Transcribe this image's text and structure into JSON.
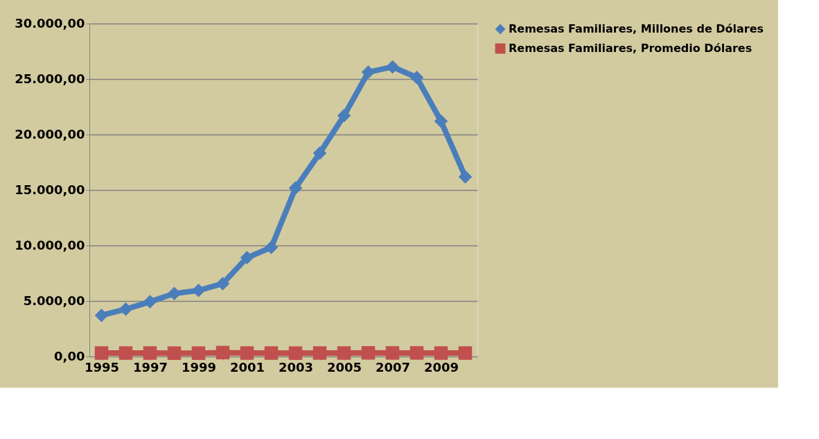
{
  "chart_data": {
    "type": "line",
    "categories": [
      "1995",
      null,
      "1997",
      null,
      "1999",
      null,
      "2001",
      null,
      "2003",
      null,
      "2005",
      null,
      "2007",
      null,
      "2009",
      null
    ],
    "series": [
      {
        "name": "Remesas Familiares, Millones de Dólares",
        "color": "#4a7ebb",
        "marker": "diamond",
        "values": [
          3710,
          4260,
          4930,
          5670,
          5950,
          6570,
          8900,
          9830,
          15190,
          18330,
          21700,
          25620,
          26100,
          25140,
          21200,
          16190
        ]
      },
      {
        "name": "Remesas Familiares, Promedio  Dólares",
        "color": "#c0504d",
        "marker": "square",
        "values": [
          310,
          310,
          310,
          300,
          300,
          350,
          310,
          310,
          300,
          310,
          310,
          330,
          320,
          320,
          310,
          310
        ]
      }
    ],
    "ylim": [
      0,
      30000
    ],
    "yticks": [
      {
        "value": 0,
        "label": "0,00"
      },
      {
        "value": 5000,
        "label": "5.000,00"
      },
      {
        "value": 10000,
        "label": "10.000,00"
      },
      {
        "value": 15000,
        "label": "15.000,00"
      },
      {
        "value": 20000,
        "label": "20.000,00"
      },
      {
        "value": 25000,
        "label": "25.000,00"
      },
      {
        "value": 30000,
        "label": "30.000,00"
      }
    ],
    "grid": "y",
    "legend": "right",
    "line_style": "solid"
  }
}
